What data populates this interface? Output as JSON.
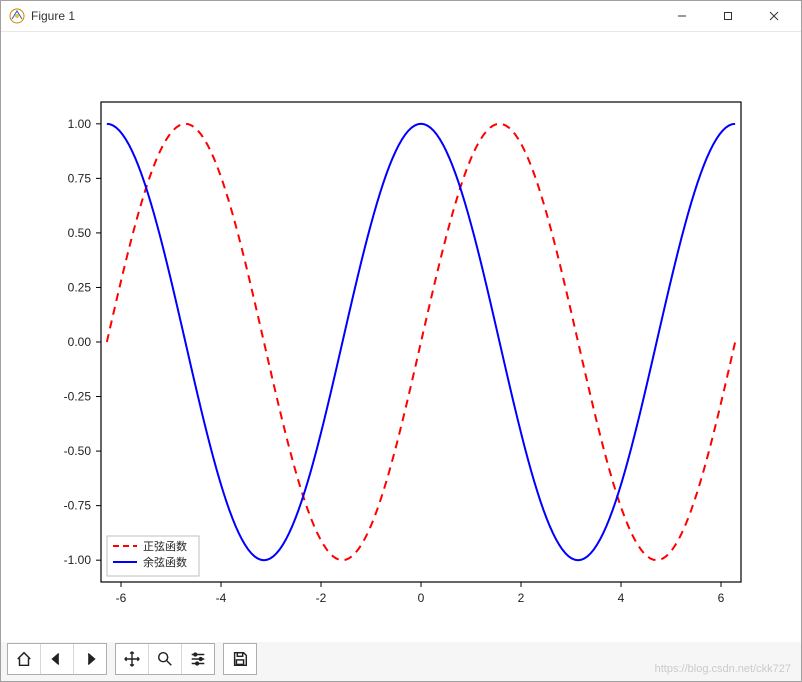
{
  "window": {
    "title": "Figure 1"
  },
  "watermark": "https://blog.csdn.net/ckk727",
  "chart": {
    "type": "line",
    "background_color": "#ffffff",
    "axes_border_color": "#000000",
    "tick_color": "#000000",
    "tick_fontsize": 12,
    "x": {
      "min": -6.4,
      "max": 6.4,
      "ticks": [
        -6,
        -4,
        -2,
        0,
        2,
        4,
        6
      ]
    },
    "y": {
      "min": -1.1,
      "max": 1.1,
      "ticks": [
        -1.0,
        -0.75,
        -0.5,
        -0.25,
        0.0,
        0.25,
        0.5,
        0.75,
        1.0
      ]
    },
    "series": [
      {
        "name": "正弦函数",
        "kind": "sin",
        "color": "#ff0000",
        "linewidth": 2,
        "linestyle": "dashed",
        "dash": "8,6",
        "domain": [
          -6.283,
          6.283
        ],
        "samples": 200
      },
      {
        "name": "余弦函数",
        "kind": "cos",
        "color": "#0000ff",
        "linewidth": 2,
        "linestyle": "solid",
        "domain": [
          -6.283,
          6.283
        ],
        "samples": 200
      }
    ],
    "legend": {
      "position": "lower-left",
      "border_color": "#bfbfbf",
      "background_color": "#ffffff",
      "fontsize": 11
    }
  },
  "toolbar": {
    "buttons": [
      {
        "name": "home"
      },
      {
        "name": "back"
      },
      {
        "name": "forward"
      },
      {
        "sep": true
      },
      {
        "name": "pan"
      },
      {
        "name": "zoom"
      },
      {
        "name": "configure"
      },
      {
        "sep": true
      },
      {
        "name": "save"
      }
    ]
  }
}
